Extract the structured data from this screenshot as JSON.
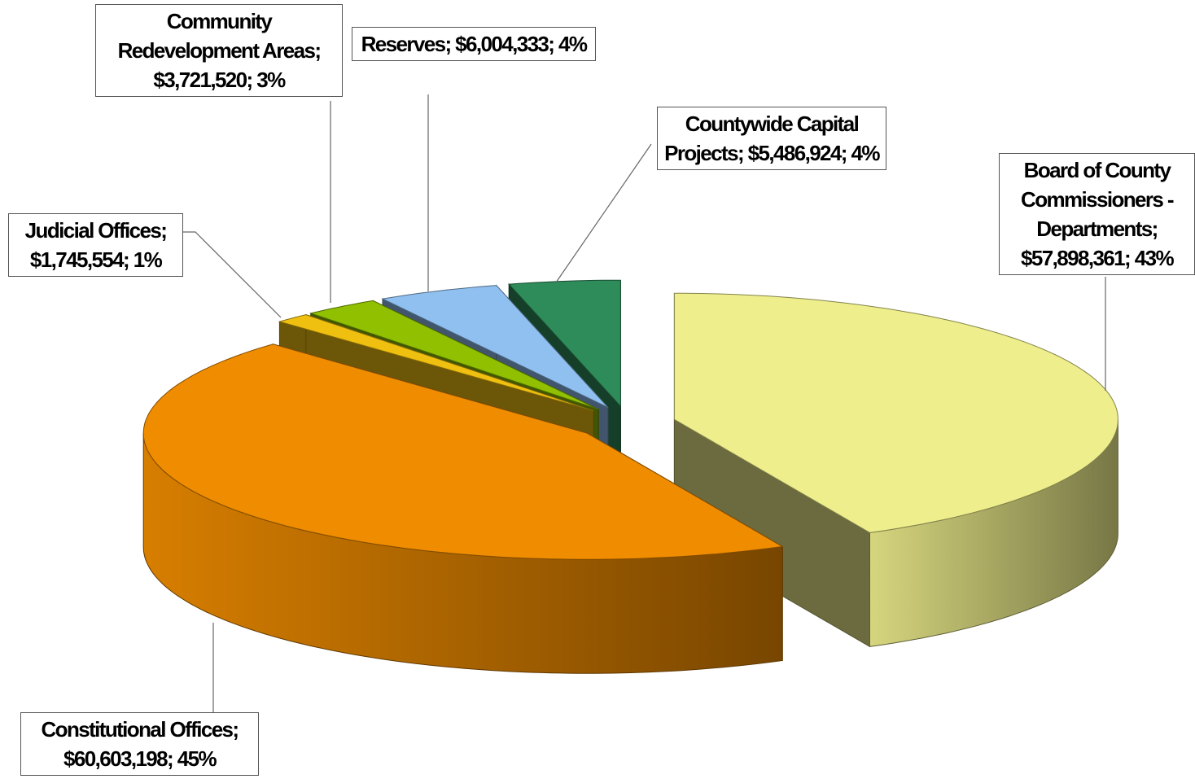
{
  "chart_data": {
    "type": "pie3d",
    "categories": [
      "Board of County Commissioners - Departments",
      "Constitutional Offices",
      "Judicial Offices",
      "Community Redevelopment Areas",
      "Reserves",
      "Countywide Capital Projects"
    ],
    "values": [
      57898361,
      60603198,
      1745554,
      3721520,
      6004333,
      5486924
    ],
    "value_labels": [
      "$57,898,361",
      "$60,603,198",
      "$1,745,554",
      "$3,721,520",
      "$6,004,333",
      "$5,486,924"
    ],
    "percents": [
      43,
      45,
      1,
      3,
      4,
      4
    ],
    "percent_labels": [
      "43%",
      "45%",
      "1%",
      "3%",
      "4%",
      "4%"
    ],
    "label_separator": ";",
    "colors": [
      "#eeee8c",
      "#ef8c00",
      "#f0c010",
      "#90c000",
      "#90c0f0",
      "#2e8b5a"
    ]
  }
}
